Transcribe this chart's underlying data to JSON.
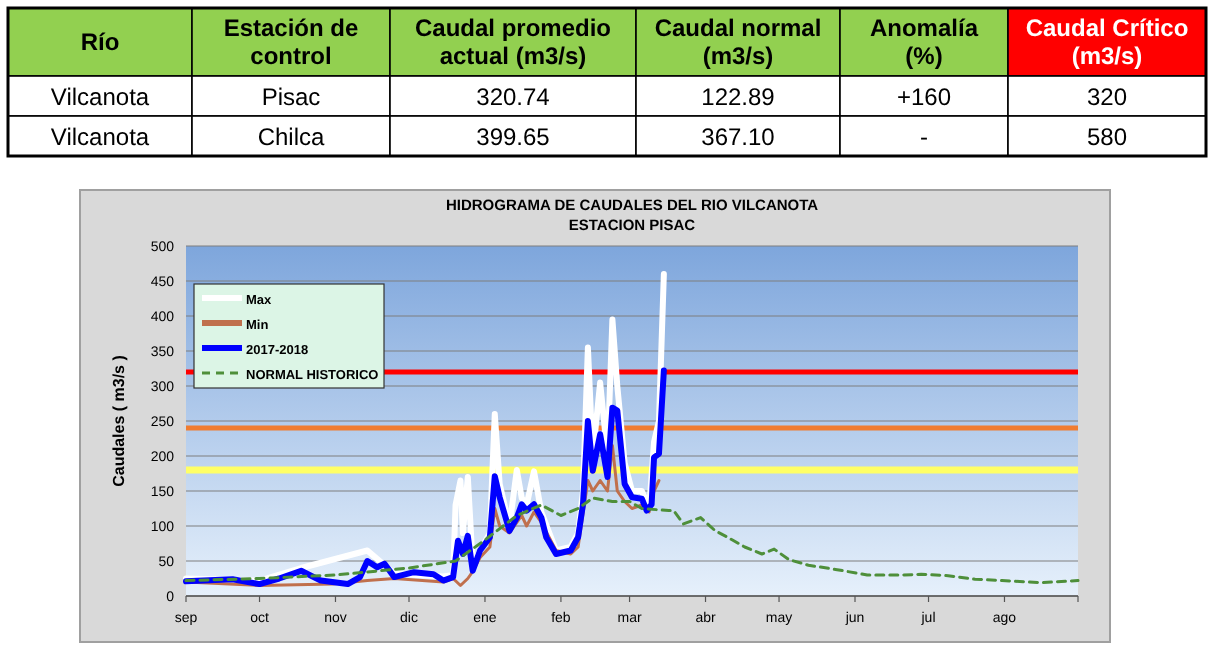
{
  "chart_data": [
    {
      "type": "other",
      "categories": [
        "Río",
        "Estación de control",
        "Caudal promedio actual (m3/s)",
        "Caudal normal (m3/s)",
        "Anomalía (%)",
        "Caudal Crítico (m3/s)"
      ],
      "colors": [
        "#92d050",
        "#92d050",
        "#92d050",
        "#92d050",
        "#92d050",
        "#ff0000"
      ],
      "annotations": [
        "Vilcanota",
        "Pisac",
        "320.74",
        "122.89",
        "+160",
        "320",
        "Vilcanota",
        "Chilca",
        "399.65",
        "367.10",
        "-",
        "580"
      ]
    },
    {
      "type": "line",
      "title": "HIDROGRAMA DE CAUDALES DEL RIO  VILCANOTA",
      "subtitle": "ESTACION  PISAC",
      "ylabel": "Caudales ( m3/s )",
      "xlim": [
        "2017-09-01",
        "2018-08-31"
      ],
      "xticks": [
        {
          "value": "2017-09-01",
          "label": "sep"
        },
        {
          "value": "2017-10-01",
          "label": "oct"
        },
        {
          "value": "2017-11-01",
          "label": "nov"
        },
        {
          "value": "2017-12-01",
          "label": "dic"
        },
        {
          "value": "2018-01-01",
          "label": "ene"
        },
        {
          "value": "2018-02-01",
          "label": "feb"
        },
        {
          "value": "2018-03-01",
          "label": "mar"
        },
        {
          "value": "2018-04-01",
          "label": "abr"
        },
        {
          "value": "2018-05-01",
          "label": "may"
        },
        {
          "value": "2018-06-01",
          "label": "jun"
        },
        {
          "value": "2018-07-01",
          "label": "jul"
        },
        {
          "value": "2018-08-01",
          "label": "ago"
        },
        {
          "value": "2018-08-31",
          "label": null
        }
      ],
      "ylim": [
        0,
        500
      ],
      "yticks": [
        0,
        50,
        100,
        150,
        200,
        250,
        300,
        350,
        400,
        450,
        500
      ],
      "grid": "y",
      "legend": "top left",
      "marker": "none",
      "ref_lines": [
        {
          "axis": "y",
          "value": 320,
          "color": "#ff0000"
        },
        {
          "axis": "y",
          "value": 240,
          "color": "#f07c30"
        }
      ],
      "bands": [
        {
          "axis": "y",
          "from": 175,
          "to": 185,
          "color": "#ffff66"
        }
      ],
      "series": [
        {
          "name": "Max",
          "color": "#ffffff",
          "x": [
            "2017-09-01",
            "2017-10-01",
            "2017-10-18",
            "2017-11-14",
            "2017-11-25",
            "2017-12-15",
            "2017-12-19",
            "2017-12-20",
            "2017-12-22",
            "2017-12-23",
            "2017-12-25",
            "2017-12-27",
            "2018-01-03",
            "2018-01-05",
            "2018-01-07",
            "2018-01-11",
            "2018-01-14",
            "2018-01-16",
            "2018-01-18",
            "2018-01-21",
            "2018-01-24",
            "2018-01-30",
            "2018-02-05",
            "2018-02-08",
            "2018-02-10",
            "2018-02-12",
            "2018-02-14",
            "2018-02-17",
            "2018-02-20",
            "2018-02-22",
            "2018-02-24",
            "2018-02-27",
            "2018-03-02",
            "2018-03-06",
            "2018-03-09",
            "2018-03-11",
            "2018-03-13",
            "2018-03-15"
          ],
          "values": [
            25,
            22,
            40,
            65,
            32,
            28,
            30,
            130,
            165,
            90,
            170,
            45,
            90,
            260,
            160,
            100,
            180,
            140,
            130,
            178,
            120,
            65,
            70,
            90,
            150,
            355,
            200,
            305,
            200,
            395,
            300,
            190,
            150,
            150,
            125,
            220,
            250,
            460
          ]
        },
        {
          "name": "Min",
          "color": "#c0704d",
          "x": [
            "2017-09-01",
            "2017-10-01",
            "2017-10-31",
            "2017-11-14",
            "2017-11-25",
            "2017-12-15",
            "2017-12-19",
            "2017-12-22",
            "2017-12-25",
            "2017-12-27",
            "2017-12-30",
            "2018-01-03",
            "2018-01-05",
            "2018-01-07",
            "2018-01-11",
            "2018-01-14",
            "2018-01-16",
            "2018-01-18",
            "2018-01-21",
            "2018-01-24",
            "2018-01-30",
            "2018-02-05",
            "2018-02-08",
            "2018-02-12",
            "2018-02-14",
            "2018-02-17",
            "2018-02-20",
            "2018-02-22",
            "2018-02-24",
            "2018-02-27",
            "2018-03-02",
            "2018-03-06",
            "2018-03-09",
            "2018-03-11",
            "2018-03-13"
          ],
          "values": [
            20,
            15,
            17,
            22,
            25,
            20,
            25,
            15,
            25,
            35,
            55,
            70,
            125,
            100,
            90,
            105,
            115,
            100,
            120,
            105,
            65,
            60,
            70,
            165,
            150,
            165,
            150,
            215,
            150,
            135,
            125,
            130,
            120,
            150,
            165
          ]
        },
        {
          "name": "2017-2018",
          "color": "#0000ff",
          "x": [
            "2017-09-01",
            "2017-09-20",
            "2017-10-01",
            "2017-10-09",
            "2017-10-18",
            "2017-10-26",
            "2017-11-06",
            "2017-11-11",
            "2017-11-14",
            "2017-11-18",
            "2017-11-21",
            "2017-11-25",
            "2017-12-03",
            "2017-12-11",
            "2017-12-15",
            "2017-12-19",
            "2017-12-21",
            "2017-12-23",
            "2017-12-25",
            "2017-12-27",
            "2017-12-30",
            "2018-01-03",
            "2018-01-05",
            "2018-01-07",
            "2018-01-11",
            "2018-01-14",
            "2018-01-16",
            "2018-01-18",
            "2018-01-21",
            "2018-01-24",
            "2018-01-26",
            "2018-01-30",
            "2018-02-05",
            "2018-02-08",
            "2018-02-10",
            "2018-02-12",
            "2018-02-14",
            "2018-02-17",
            "2018-02-20",
            "2018-02-22",
            "2018-02-24",
            "2018-02-27",
            "2018-03-02",
            "2018-03-06",
            "2018-03-08",
            "2018-03-10",
            "2018-03-11",
            "2018-03-13",
            "2018-03-15"
          ],
          "values": [
            21,
            24,
            17,
            25,
            36,
            22,
            17,
            27,
            50,
            41,
            46,
            27,
            34,
            31,
            22,
            27,
            79,
            60,
            86,
            36,
            65,
            84,
            171,
            141,
            93,
            112,
            131,
            122,
            131,
            112,
            84,
            60,
            65,
            84,
            131,
            250,
            179,
            231,
            170,
            269,
            265,
            160,
            141,
            139,
            122,
            131,
            198,
            203,
            322
          ]
        },
        {
          "name": "NORMAL HISTORICO",
          "color": "#4e8f3a",
          "line_style": "dashed",
          "x": [
            "2017-09-01",
            "2017-10-01",
            "2017-11-01",
            "2017-12-01",
            "2017-12-20",
            "2018-01-01",
            "2018-01-14",
            "2018-01-24",
            "2018-02-01",
            "2018-02-08",
            "2018-02-14",
            "2018-02-22",
            "2018-03-01",
            "2018-03-06",
            "2018-03-17",
            "2018-03-19",
            "2018-03-23",
            "2018-03-30",
            "2018-04-05",
            "2018-04-10",
            "2018-04-17",
            "2018-04-24",
            "2018-04-29",
            "2018-05-05",
            "2018-05-13",
            "2018-05-24",
            "2018-06-06",
            "2018-06-20",
            "2018-06-28",
            "2018-07-09",
            "2018-07-20",
            "2018-07-31",
            "2018-08-16",
            "2018-08-31"
          ],
          "values": [
            22,
            25,
            30,
            40,
            50,
            80,
            115,
            130,
            115,
            125,
            140,
            135,
            135,
            125,
            122,
            122,
            103,
            112,
            93,
            84,
            70,
            60,
            67,
            52,
            44,
            38,
            30,
            30,
            31,
            29,
            24,
            22,
            19,
            22
          ]
        }
      ]
    }
  ]
}
